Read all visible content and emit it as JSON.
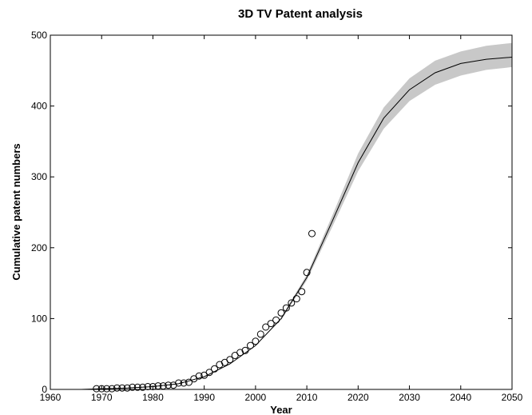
{
  "chart_data": {
    "type": "scatter",
    "title": "3D TV Patent analysis",
    "xlabel": "Year",
    "ylabel": "Cumulative patent numbers",
    "xlim": [
      1960,
      2050
    ],
    "ylim": [
      0,
      500
    ],
    "xticks": [
      1960,
      1970,
      1980,
      1990,
      2000,
      2010,
      2020,
      2030,
      2040,
      2050
    ],
    "yticks": [
      0,
      100,
      200,
      300,
      400,
      500
    ],
    "grid": false,
    "legend": "none",
    "colors": {
      "band": "#c8c8c8",
      "fit": "#000000",
      "points": "#000000"
    },
    "series": [
      {
        "kind": "points",
        "x": [
          1969,
          1970,
          1971,
          1972,
          1973,
          1974,
          1975,
          1976,
          1977,
          1978,
          1979,
          1980,
          1981,
          1982,
          1983,
          1984,
          1985,
          1986,
          1987,
          1988,
          1989,
          1990,
          1991,
          1992,
          1993,
          1994,
          1995,
          1996,
          1997,
          1998,
          1999,
          2000,
          2001,
          2002,
          2003,
          2004,
          2005,
          2006,
          2007,
          2008,
          2009,
          2010,
          2011
        ],
        "y": [
          1,
          1,
          1,
          1,
          2,
          2,
          2,
          3,
          3,
          3,
          4,
          4,
          5,
          5,
          6,
          6,
          9,
          9,
          10,
          15,
          19,
          20,
          24,
          29,
          35,
          38,
          42,
          48,
          52,
          55,
          62,
          68,
          78,
          88,
          93,
          98,
          108,
          115,
          122,
          128,
          138,
          165,
          220
        ]
      },
      {
        "kind": "fit",
        "x": [
          1966,
          1970,
          1975,
          1980,
          1985,
          1990,
          1995,
          2000,
          2005,
          2010,
          2015,
          2020,
          2025,
          2030,
          2035,
          2040,
          2045,
          2050
        ],
        "y": [
          0,
          1,
          2,
          4,
          8,
          18,
          36,
          62,
          100,
          158,
          238,
          320,
          383,
          423,
          447,
          460,
          466,
          469
        ]
      },
      {
        "kind": "band",
        "x": [
          2005,
          2010,
          2015,
          2020,
          2025,
          2030,
          2035,
          2040,
          2045,
          2050
        ],
        "lower": [
          98,
          154,
          230,
          308,
          368,
          407,
          430,
          443,
          451,
          455
        ],
        "upper": [
          102,
          162,
          246,
          333,
          398,
          439,
          464,
          477,
          485,
          489
        ]
      }
    ]
  }
}
